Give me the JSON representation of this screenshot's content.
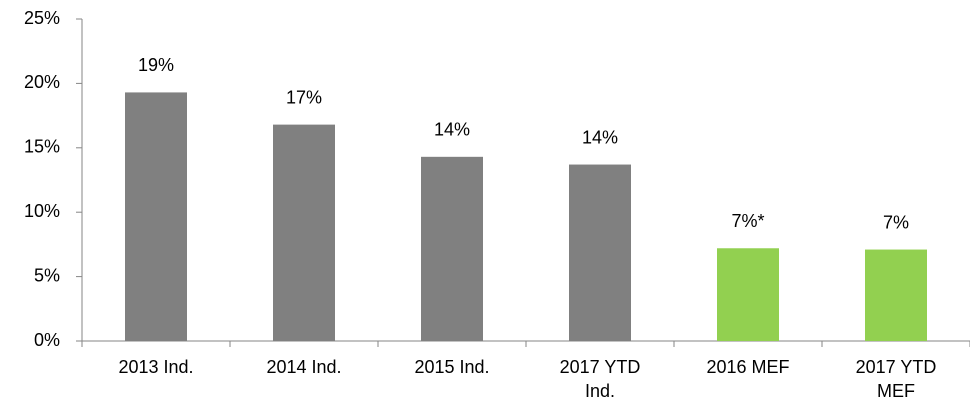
{
  "chart_data": {
    "type": "bar",
    "categories": [
      "2013 Ind.",
      "2014 Ind.",
      "2015 Ind.",
      "2017 YTD Ind.",
      "2016 MEF",
      "2017 YTD MEF"
    ],
    "values": [
      19.3,
      16.8,
      14.3,
      13.7,
      7.2,
      7.1
    ],
    "value_labels": [
      "19%",
      "17%",
      "14%",
      "14%",
      "7%*",
      "7%"
    ],
    "colors": [
      "#808080",
      "#808080",
      "#808080",
      "#808080",
      "#92d050",
      "#92d050"
    ],
    "ylim": [
      0,
      25
    ],
    "yticks": [
      {
        "value": 0,
        "label": "0%"
      },
      {
        "value": 5,
        "label": "5%"
      },
      {
        "value": 10,
        "label": "10%"
      },
      {
        "value": 15,
        "label": "15%"
      },
      {
        "value": 20,
        "label": "20%"
      },
      {
        "value": 25,
        "label": "25%"
      }
    ],
    "grid": false
  }
}
